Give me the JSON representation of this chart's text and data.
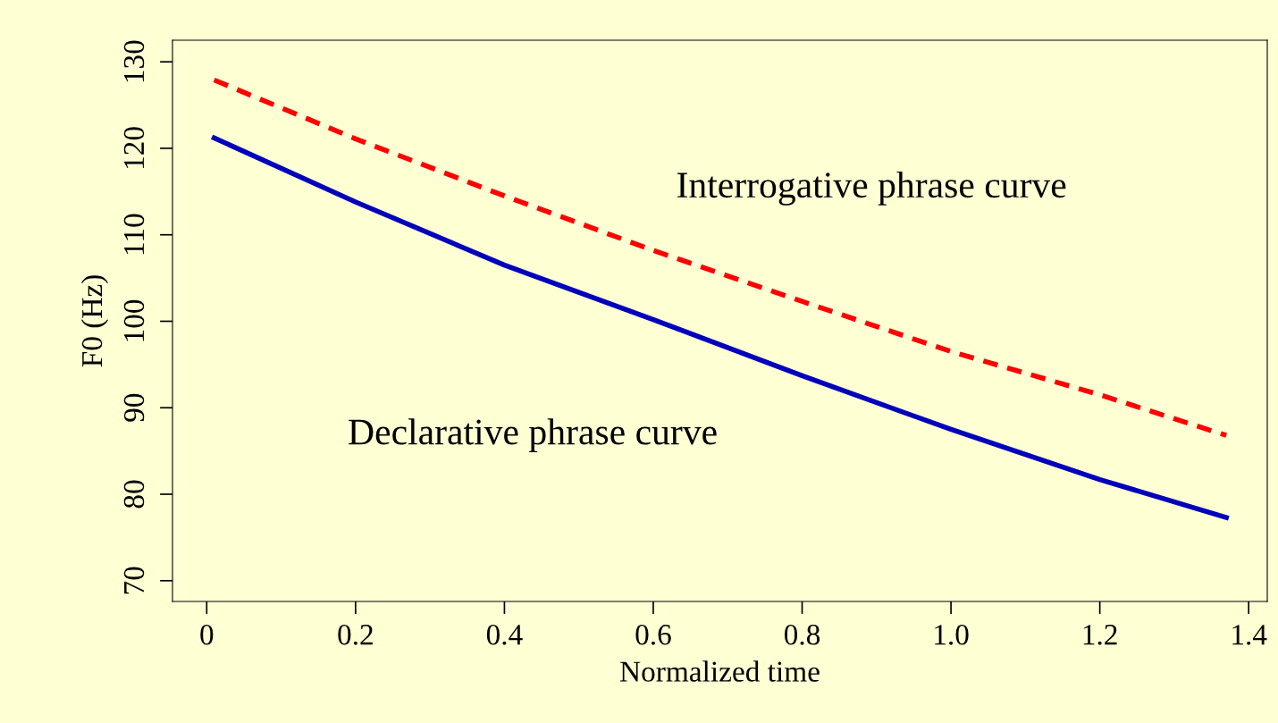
{
  "chart_data": {
    "type": "line",
    "xlabel": "Normalized time",
    "ylabel": "F0 (Hz)",
    "x": [
      0.01,
      0.2,
      0.4,
      0.6,
      0.8,
      1.0,
      1.2,
      1.37
    ],
    "series": [
      {
        "name": "Interrogative phrase curve",
        "color": "#ff0000",
        "line_style": "dashed",
        "values": [
          127.9,
          121.1,
          114.5,
          108.2,
          102.3,
          96.5,
          91.5,
          86.8
        ]
      },
      {
        "name": "Declarative phrase curve",
        "color": "#0000bb",
        "line_style": "solid",
        "values": [
          121.2,
          113.8,
          106.5,
          100.2,
          93.7,
          87.5,
          81.7,
          77.3
        ]
      }
    ],
    "xlim": [
      -0.046,
      1.425
    ],
    "ylim": [
      67.6,
      132.5
    ],
    "xticks": [
      0,
      0.2,
      0.4,
      0.6,
      0.8,
      {
        "value": 1.0,
        "label": "1.0"
      },
      1.2,
      1.4
    ],
    "yticks": [
      70,
      80,
      90,
      100,
      110,
      120,
      130
    ],
    "grid": false,
    "legend": false
  }
}
